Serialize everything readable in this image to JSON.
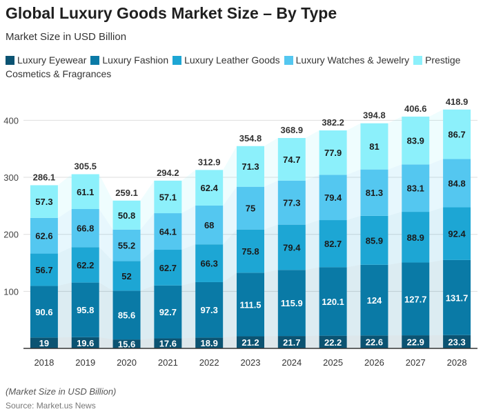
{
  "header": {
    "title": "Global Luxury Goods Market Size – By Type",
    "subtitle": "Market Size in USD Billion"
  },
  "footer": {
    "note": "(Market Size in USD Billion)",
    "source": "Source: Market.us News"
  },
  "colors": {
    "Luxury Eyewear": "#0b5372",
    "Luxury Fashion": "#0a7aa6",
    "Luxury Leather Goods": "#1da6d4",
    "Luxury Watches & Jewelry": "#54c7f0",
    "Prestige Cosmetics & Fragrances": "#8cf0fb",
    "band": "#d7ecf5",
    "grid": "#dddddd",
    "axis": "#333333"
  },
  "chart_data": {
    "type": "bar",
    "stacked": true,
    "title": "Global Luxury Goods Market Size – By Type",
    "subtitle": "Market Size in USD Billion",
    "xlabel": "",
    "ylabel": "",
    "ylim": [
      0,
      420
    ],
    "yticks": [
      100,
      200,
      300,
      400
    ],
    "grid": true,
    "legend": "top-left",
    "categories": [
      "2018",
      "2019",
      "2020",
      "2021",
      "2022",
      "2023",
      "2024",
      "2025",
      "2026",
      "2027",
      "2028"
    ],
    "series": [
      {
        "name": "Luxury Eyewear",
        "values": [
          19,
          19.6,
          15.6,
          17.6,
          18.9,
          21.2,
          21.7,
          22.2,
          22.6,
          22.9,
          23.3
        ]
      },
      {
        "name": "Luxury Fashion",
        "values": [
          90.6,
          95.8,
          85.6,
          92.7,
          97.3,
          111.5,
          115.9,
          120.1,
          124,
          127.7,
          131.7
        ]
      },
      {
        "name": "Luxury Leather Goods",
        "values": [
          56.7,
          62.2,
          52,
          62.7,
          66.3,
          75.8,
          79.4,
          82.7,
          85.9,
          88.9,
          92.4
        ]
      },
      {
        "name": "Luxury Watches & Jewelry",
        "values": [
          62.6,
          66.8,
          55.2,
          64.1,
          68,
          75,
          77.3,
          79.4,
          81.3,
          83.1,
          84.8
        ]
      },
      {
        "name": "Prestige Cosmetics & Fragrances",
        "values": [
          57.3,
          61.1,
          50.8,
          57.1,
          62.4,
          71.3,
          74.7,
          77.9,
          81,
          83.9,
          86.7
        ]
      }
    ],
    "totals": [
      "286.1",
      "305.5",
      "259.1",
      "294.2",
      "312.9",
      "354.8",
      "368.9",
      "382.2",
      "394.8",
      "406.6",
      "418.9"
    ]
  }
}
